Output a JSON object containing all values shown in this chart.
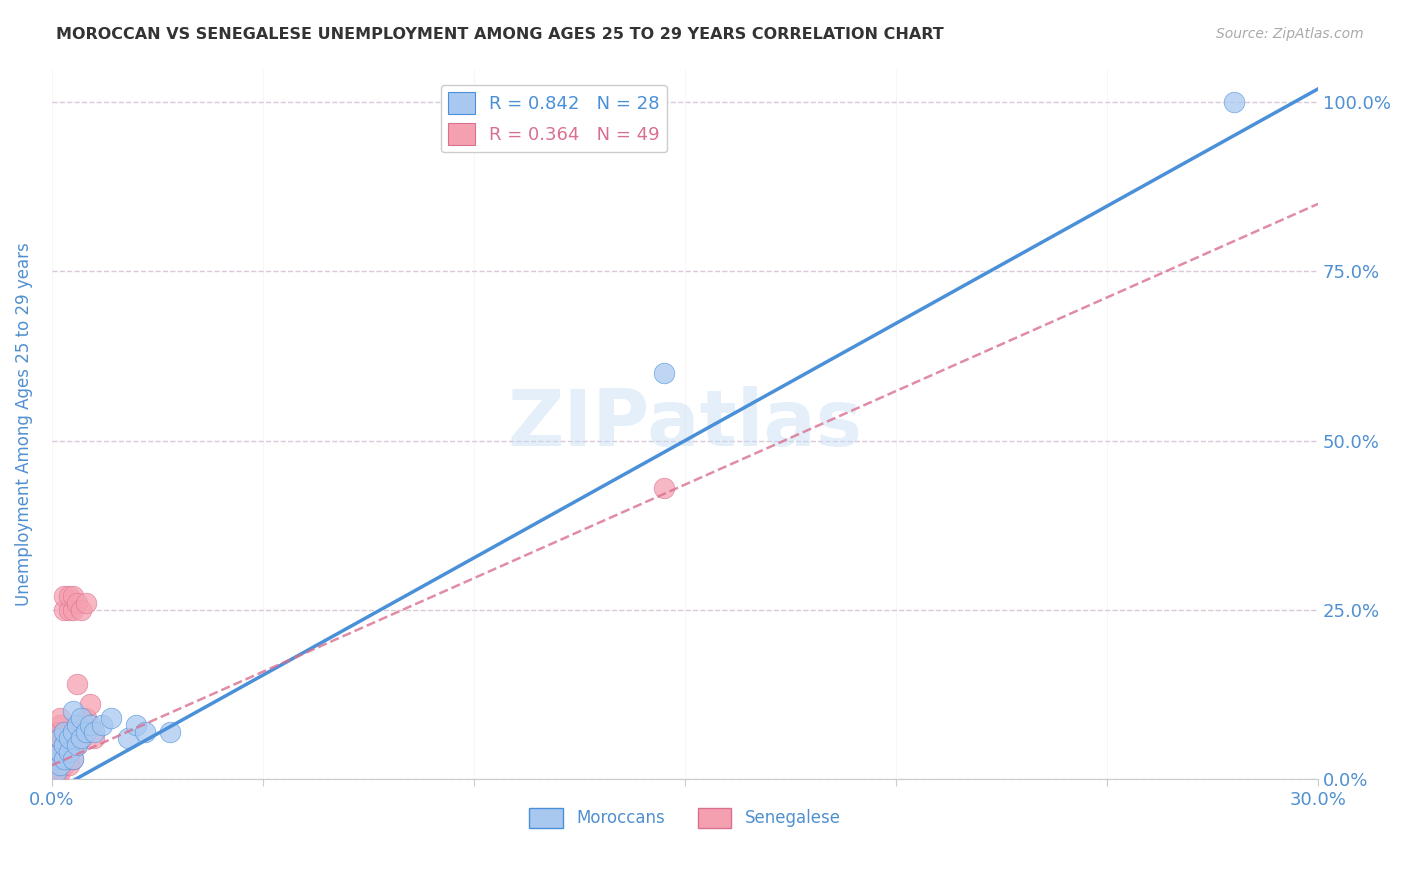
{
  "title": "MOROCCAN VS SENEGALESE UNEMPLOYMENT AMONG AGES 25 TO 29 YEARS CORRELATION CHART",
  "source": "Source: ZipAtlas.com",
  "ylabel": "Unemployment Among Ages 25 to 29 years",
  "xlim": [
    0.0,
    0.3
  ],
  "ylim": [
    0.0,
    1.05
  ],
  "xticks": [
    0.0,
    0.05,
    0.1,
    0.15,
    0.2,
    0.25,
    0.3
  ],
  "xtick_labels": [
    "0.0%",
    "",
    "",
    "",
    "",
    "",
    "30.0%"
  ],
  "ytick_labels": [
    "100.0%",
    "75.0%",
    "50.0%",
    "25.0%",
    "0.0%"
  ],
  "ytick_right_labels": [
    "100.0%",
    "75.0%",
    "50.0%",
    "25.0%",
    "0.0%"
  ],
  "yticks": [
    1.0,
    0.75,
    0.5,
    0.25,
    0.0
  ],
  "moroccan_color": "#a8c8f0",
  "senegalese_color": "#f5a0b0",
  "moroccan_line_color": "#4a90d9",
  "senegalese_line_color": "#d97090",
  "watermark": "ZIPatlas",
  "moroccan_R": 0.842,
  "moroccan_N": 28,
  "senegalese_R": 0.364,
  "senegalese_N": 49,
  "moroccan_line_x0": 0.0,
  "moroccan_line_y0": -0.02,
  "moroccan_line_x1": 0.3,
  "moroccan_line_y1": 1.02,
  "senegalese_line_x0": 0.0,
  "senegalese_line_y0": 0.02,
  "senegalese_line_x1": 0.3,
  "senegalese_line_y1": 0.85,
  "moroccan_x": [
    0.001,
    0.001,
    0.002,
    0.002,
    0.002,
    0.003,
    0.003,
    0.003,
    0.004,
    0.004,
    0.005,
    0.005,
    0.005,
    0.006,
    0.006,
    0.007,
    0.007,
    0.008,
    0.009,
    0.01,
    0.012,
    0.014,
    0.018,
    0.02,
    0.022,
    0.028,
    0.145,
    0.28
  ],
  "moroccan_y": [
    0.01,
    0.03,
    0.02,
    0.04,
    0.06,
    0.03,
    0.05,
    0.07,
    0.04,
    0.06,
    0.03,
    0.07,
    0.1,
    0.05,
    0.08,
    0.06,
    0.09,
    0.07,
    0.08,
    0.07,
    0.08,
    0.09,
    0.06,
    0.08,
    0.07,
    0.07,
    0.6,
    1.0
  ],
  "senegalese_x": [
    0.0005,
    0.0005,
    0.001,
    0.001,
    0.001,
    0.001,
    0.001,
    0.001,
    0.001,
    0.001,
    0.001,
    0.001,
    0.0015,
    0.0015,
    0.002,
    0.002,
    0.002,
    0.002,
    0.002,
    0.002,
    0.002,
    0.002,
    0.002,
    0.003,
    0.003,
    0.003,
    0.003,
    0.003,
    0.004,
    0.004,
    0.004,
    0.004,
    0.004,
    0.004,
    0.005,
    0.005,
    0.005,
    0.005,
    0.006,
    0.006,
    0.006,
    0.006,
    0.007,
    0.007,
    0.008,
    0.008,
    0.009,
    0.01,
    0.145
  ],
  "senegalese_y": [
    0.005,
    0.01,
    0.005,
    0.01,
    0.015,
    0.02,
    0.025,
    0.03,
    0.04,
    0.05,
    0.06,
    0.07,
    0.01,
    0.03,
    0.01,
    0.02,
    0.03,
    0.04,
    0.05,
    0.06,
    0.07,
    0.08,
    0.09,
    0.02,
    0.03,
    0.05,
    0.25,
    0.27,
    0.02,
    0.03,
    0.05,
    0.07,
    0.25,
    0.27,
    0.03,
    0.05,
    0.25,
    0.27,
    0.05,
    0.07,
    0.14,
    0.26,
    0.06,
    0.25,
    0.09,
    0.26,
    0.11,
    0.06,
    0.43
  ],
  "grid_color": "#d8c8d8",
  "background_color": "#ffffff",
  "title_color": "#333333",
  "axis_label_color": "#5090d0",
  "tick_color": "#5090d0"
}
